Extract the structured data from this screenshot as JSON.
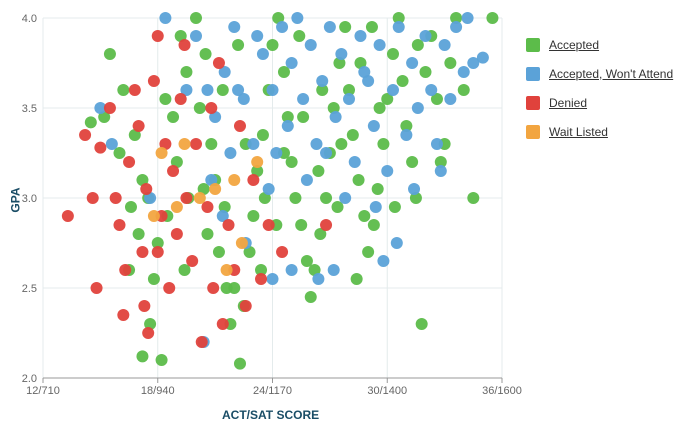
{
  "chart_data": {
    "type": "scatter",
    "xlabel": "ACT/SAT SCORE",
    "ylabel": "GPA",
    "xlim": [
      12,
      36
    ],
    "ylim": [
      2.0,
      4.0
    ],
    "x_ticks": [
      12,
      18,
      24,
      30,
      36
    ],
    "x_tick_labels": [
      "12/710",
      "18/940",
      "24/1170",
      "30/1400",
      "36/1600"
    ],
    "y_ticks": [
      2.0,
      2.5,
      3.0,
      3.5,
      4.0
    ],
    "y_tick_labels": [
      "2.0",
      "2.5",
      "3.0",
      "3.5",
      "4.0"
    ],
    "grid": true,
    "legend_position": "right",
    "series": [
      {
        "name": "Accepted",
        "color": "#5cbc4a",
        "points": [
          [
            15.5,
            3.8
          ],
          [
            16.2,
            3.6
          ],
          [
            16.8,
            3.35
          ],
          [
            17.2,
            3.1
          ],
          [
            17.5,
            3.0
          ],
          [
            17.0,
            2.8
          ],
          [
            16.5,
            2.6
          ],
          [
            17.6,
            2.3
          ],
          [
            17.2,
            2.12
          ],
          [
            18.2,
            2.1
          ],
          [
            17.8,
            2.55
          ],
          [
            18.0,
            2.75
          ],
          [
            18.5,
            2.9
          ],
          [
            19.0,
            3.2
          ],
          [
            18.8,
            3.45
          ],
          [
            19.5,
            3.7
          ],
          [
            19.2,
            3.9
          ],
          [
            20.0,
            4.0
          ],
          [
            20.5,
            3.8
          ],
          [
            20.2,
            3.5
          ],
          [
            20.8,
            3.3
          ],
          [
            21.0,
            3.1
          ],
          [
            21.5,
            2.95
          ],
          [
            21.2,
            2.7
          ],
          [
            22.0,
            2.5
          ],
          [
            21.8,
            2.3
          ],
          [
            22.3,
            2.08
          ],
          [
            22.5,
            2.4
          ],
          [
            22.8,
            2.7
          ],
          [
            23.0,
            2.9
          ],
          [
            23.2,
            3.15
          ],
          [
            23.5,
            3.35
          ],
          [
            23.8,
            3.6
          ],
          [
            24.0,
            3.85
          ],
          [
            24.3,
            4.0
          ],
          [
            24.6,
            3.7
          ],
          [
            24.8,
            3.45
          ],
          [
            25.0,
            3.2
          ],
          [
            25.2,
            3.0
          ],
          [
            25.5,
            2.85
          ],
          [
            25.8,
            2.65
          ],
          [
            26.0,
            2.45
          ],
          [
            26.2,
            2.6
          ],
          [
            26.5,
            2.8
          ],
          [
            26.8,
            3.0
          ],
          [
            27.0,
            3.25
          ],
          [
            27.2,
            3.5
          ],
          [
            27.5,
            3.75
          ],
          [
            27.8,
            3.95
          ],
          [
            28.0,
            3.6
          ],
          [
            28.2,
            3.35
          ],
          [
            28.5,
            3.1
          ],
          [
            28.8,
            2.9
          ],
          [
            29.0,
            2.7
          ],
          [
            29.3,
            2.85
          ],
          [
            29.5,
            3.05
          ],
          [
            29.8,
            3.3
          ],
          [
            30.0,
            3.55
          ],
          [
            30.3,
            3.8
          ],
          [
            30.6,
            4.0
          ],
          [
            30.8,
            3.65
          ],
          [
            31.0,
            3.4
          ],
          [
            31.3,
            3.2
          ],
          [
            31.5,
            3.0
          ],
          [
            31.8,
            2.3
          ],
          [
            32.0,
            3.7
          ],
          [
            32.3,
            3.9
          ],
          [
            32.6,
            3.55
          ],
          [
            33.0,
            3.3
          ],
          [
            33.3,
            3.75
          ],
          [
            33.6,
            4.0
          ],
          [
            34.0,
            3.6
          ],
          [
            34.5,
            3.0
          ],
          [
            35.5,
            4.0
          ],
          [
            14.5,
            3.42
          ],
          [
            15.2,
            3.45
          ],
          [
            16.0,
            3.25
          ],
          [
            16.6,
            2.95
          ],
          [
            19.6,
            3.0
          ],
          [
            20.6,
            2.8
          ],
          [
            22.6,
            3.3
          ],
          [
            23.4,
            2.6
          ],
          [
            24.2,
            2.85
          ],
          [
            25.6,
            3.45
          ],
          [
            26.4,
            3.15
          ],
          [
            27.4,
            2.95
          ],
          [
            28.6,
            3.75
          ],
          [
            29.6,
            3.5
          ],
          [
            30.4,
            2.95
          ],
          [
            31.6,
            3.85
          ],
          [
            32.8,
            3.2
          ],
          [
            21.4,
            3.6
          ],
          [
            22.2,
            3.85
          ],
          [
            23.6,
            3.0
          ],
          [
            24.6,
            3.25
          ],
          [
            25.4,
            3.9
          ],
          [
            26.6,
            3.6
          ],
          [
            27.6,
            3.3
          ],
          [
            28.4,
            2.55
          ],
          [
            29.2,
            3.95
          ],
          [
            18.4,
            3.55
          ],
          [
            19.4,
            2.6
          ],
          [
            20.4,
            3.05
          ],
          [
            21.6,
            2.5
          ]
        ]
      },
      {
        "name": "Accepted, Won't Attend",
        "color": "#5ba2d8",
        "points": [
          [
            18.4,
            4.0
          ],
          [
            20.0,
            3.9
          ],
          [
            20.6,
            3.6
          ],
          [
            21.0,
            3.45
          ],
          [
            21.5,
            3.7
          ],
          [
            22.0,
            3.95
          ],
          [
            22.5,
            3.55
          ],
          [
            23.0,
            3.3
          ],
          [
            23.5,
            3.8
          ],
          [
            24.0,
            3.6
          ],
          [
            24.5,
            3.95
          ],
          [
            24.8,
            3.4
          ],
          [
            25.0,
            3.75
          ],
          [
            25.3,
            4.0
          ],
          [
            25.6,
            3.55
          ],
          [
            26.0,
            3.85
          ],
          [
            26.3,
            3.3
          ],
          [
            26.6,
            3.65
          ],
          [
            27.0,
            3.95
          ],
          [
            27.3,
            3.45
          ],
          [
            27.6,
            3.8
          ],
          [
            28.0,
            3.55
          ],
          [
            28.3,
            3.2
          ],
          [
            28.6,
            3.9
          ],
          [
            29.0,
            3.65
          ],
          [
            29.3,
            3.4
          ],
          [
            29.6,
            3.85
          ],
          [
            30.0,
            3.15
          ],
          [
            30.3,
            3.6
          ],
          [
            30.6,
            3.95
          ],
          [
            31.0,
            3.35
          ],
          [
            31.3,
            3.75
          ],
          [
            31.6,
            3.5
          ],
          [
            32.0,
            3.9
          ],
          [
            32.3,
            3.6
          ],
          [
            32.6,
            3.3
          ],
          [
            33.0,
            3.85
          ],
          [
            33.3,
            3.55
          ],
          [
            33.6,
            3.95
          ],
          [
            34.0,
            3.7
          ],
          [
            34.5,
            3.75
          ],
          [
            35.0,
            3.78
          ],
          [
            34.2,
            4.0
          ],
          [
            30.5,
            2.75
          ],
          [
            29.8,
            2.65
          ],
          [
            27.2,
            2.6
          ],
          [
            26.4,
            2.55
          ],
          [
            25.0,
            2.6
          ],
          [
            24.0,
            2.55
          ],
          [
            22.6,
            2.75
          ],
          [
            21.4,
            2.9
          ],
          [
            20.4,
            2.2
          ],
          [
            20.8,
            3.1
          ],
          [
            19.5,
            3.6
          ],
          [
            15.0,
            3.5
          ],
          [
            15.6,
            3.3
          ],
          [
            17.6,
            3.0
          ],
          [
            23.8,
            3.05
          ],
          [
            25.8,
            3.1
          ],
          [
            27.8,
            3.0
          ],
          [
            29.4,
            2.95
          ],
          [
            31.4,
            3.05
          ],
          [
            32.8,
            3.15
          ],
          [
            28.8,
            3.7
          ],
          [
            26.8,
            3.25
          ],
          [
            24.2,
            3.25
          ],
          [
            22.2,
            3.6
          ],
          [
            23.2,
            3.9
          ],
          [
            21.8,
            3.25
          ]
        ]
      },
      {
        "name": "Denied",
        "color": "#e0423c",
        "points": [
          [
            13.3,
            2.9
          ],
          [
            14.2,
            3.35
          ],
          [
            14.6,
            3.0
          ],
          [
            15.0,
            3.28
          ],
          [
            14.8,
            2.5
          ],
          [
            15.5,
            3.5
          ],
          [
            15.8,
            3.0
          ],
          [
            16.0,
            2.85
          ],
          [
            16.3,
            2.6
          ],
          [
            16.5,
            3.2
          ],
          [
            16.8,
            3.6
          ],
          [
            17.0,
            3.4
          ],
          [
            17.2,
            2.7
          ],
          [
            17.3,
            2.4
          ],
          [
            17.5,
            2.25
          ],
          [
            17.8,
            3.65
          ],
          [
            18.0,
            3.9
          ],
          [
            18.2,
            2.9
          ],
          [
            18.4,
            3.3
          ],
          [
            18.6,
            2.5
          ],
          [
            18.8,
            3.15
          ],
          [
            19.0,
            2.8
          ],
          [
            19.2,
            3.55
          ],
          [
            19.5,
            3.0
          ],
          [
            19.8,
            2.65
          ],
          [
            20.0,
            3.3
          ],
          [
            20.3,
            2.2
          ],
          [
            20.6,
            2.95
          ],
          [
            20.9,
            2.5
          ],
          [
            21.2,
            3.75
          ],
          [
            21.4,
            2.3
          ],
          [
            21.7,
            2.85
          ],
          [
            22.0,
            2.6
          ],
          [
            22.3,
            3.4
          ],
          [
            22.6,
            2.4
          ],
          [
            23.0,
            3.1
          ],
          [
            23.4,
            2.55
          ],
          [
            23.8,
            2.85
          ],
          [
            24.5,
            2.7
          ],
          [
            26.8,
            2.85
          ],
          [
            17.4,
            3.05
          ],
          [
            19.4,
            3.85
          ],
          [
            20.8,
            3.5
          ],
          [
            16.2,
            2.35
          ],
          [
            18.0,
            2.7
          ]
        ]
      },
      {
        "name": "Wait Listed",
        "color": "#f2a540",
        "points": [
          [
            18.2,
            3.25
          ],
          [
            19.4,
            3.3
          ],
          [
            20.2,
            3.0
          ],
          [
            21.0,
            3.05
          ],
          [
            22.0,
            3.1
          ],
          [
            21.6,
            2.6
          ],
          [
            17.8,
            2.9
          ],
          [
            23.2,
            3.2
          ],
          [
            22.4,
            2.75
          ],
          [
            19.0,
            2.95
          ]
        ]
      }
    ]
  }
}
